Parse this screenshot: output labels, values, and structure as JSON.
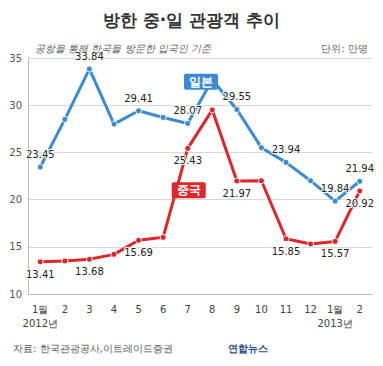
{
  "chart_data": {
    "type": "line",
    "title": "방한 중·일 관광객 추이",
    "subtitle": "공항을 통해 한국을 방문한 입국인 기준",
    "ylabel": "단위: 만명",
    "source": "자료: 한국관광공사,이트레이드증권",
    "credit": "연합뉴스",
    "categories": [
      "1월\n2012년",
      "2",
      "3",
      "4",
      "5",
      "6",
      "7",
      "8",
      "9",
      "10",
      "11",
      "12",
      "1월\n2013년",
      "2"
    ],
    "series": [
      {
        "name": "일본",
        "color": "#3b8ad6",
        "marker": "circle",
        "line_style": "solid",
        "values": [
          23.45,
          28.5,
          33.84,
          28.0,
          29.41,
          28.7,
          28.07,
          32.7,
          29.55,
          25.5,
          23.94,
          22.0,
          19.84,
          21.94
        ],
        "value_labels": [
          "23.45",
          null,
          "33.84",
          null,
          "29.41",
          null,
          "28.07",
          null,
          "29.55",
          null,
          "23.94",
          null,
          "19.84",
          "21.94"
        ]
      },
      {
        "name": "중국",
        "color": "#e0262b",
        "marker": "circle",
        "line_style": "solid",
        "values": [
          13.41,
          13.5,
          13.68,
          14.2,
          15.69,
          16.0,
          25.43,
          29.5,
          21.97,
          22.0,
          15.85,
          15.3,
          15.57,
          20.92
        ],
        "value_labels": [
          "13.41",
          null,
          "13.68",
          null,
          "15.69",
          null,
          "25.43",
          null,
          "21.97",
          null,
          "15.85",
          null,
          "15.57",
          "20.92"
        ]
      }
    ],
    "ylim": [
      10,
      35
    ],
    "yticks": [
      10,
      15,
      20,
      25,
      30,
      35
    ],
    "grid": true,
    "data_labels": true
  }
}
